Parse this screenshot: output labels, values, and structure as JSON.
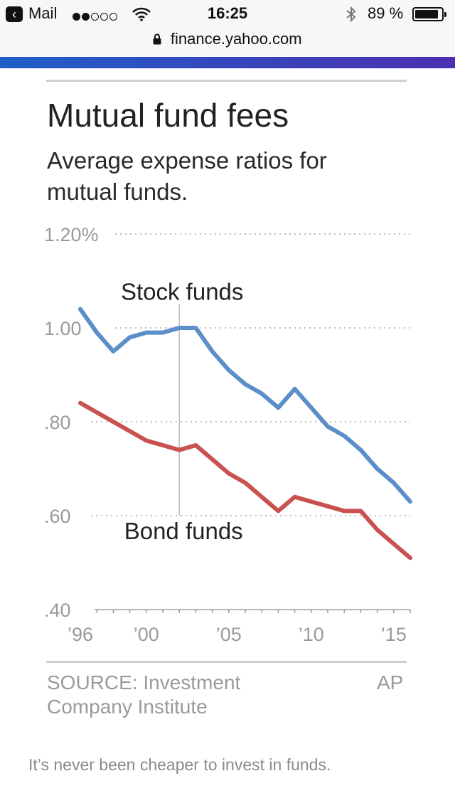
{
  "status_bar": {
    "back_app": "Mail",
    "time": "16:25",
    "battery_percent": "89 %",
    "battery_level": 0.89,
    "signal_bars_filled": 2,
    "signal_bars_total": 5
  },
  "url_bar": {
    "url": "finance.yahoo.com"
  },
  "colors": {
    "brand_start": "#1f5fc7",
    "brand_end": "#4c2fb1",
    "stock_line": "#5b8fc9",
    "bond_line": "#c9514f"
  },
  "article": {
    "title": "Mutual fund fees",
    "subtitle": "Average expense ratios for mutual funds.",
    "source": "SOURCE: Investment Company Institute",
    "credit": "AP",
    "caption": "It’s never been cheaper to invest in funds."
  },
  "chart_data": {
    "type": "line",
    "title": "Mutual fund fees",
    "subtitle": "Average expense ratios for mutual funds.",
    "xlabel": "",
    "ylabel": "",
    "x": [
      1996,
      1997,
      1998,
      1999,
      2000,
      2001,
      2002,
      2003,
      2004,
      2005,
      2006,
      2007,
      2008,
      2009,
      2010,
      2011,
      2012,
      2013,
      2014,
      2015,
      2016
    ],
    "series": [
      {
        "name": "Stock funds",
        "values": [
          1.04,
          0.99,
          0.95,
          0.98,
          0.99,
          0.99,
          1.0,
          1.0,
          0.95,
          0.91,
          0.88,
          0.86,
          0.83,
          0.87,
          0.83,
          0.79,
          0.77,
          0.74,
          0.7,
          0.67,
          0.63
        ]
      },
      {
        "name": "Bond funds",
        "values": [
          0.84,
          0.82,
          0.8,
          0.78,
          0.76,
          0.75,
          0.74,
          0.75,
          0.72,
          0.69,
          0.67,
          0.64,
          0.61,
          0.64,
          0.63,
          0.62,
          0.61,
          0.61,
          0.57,
          0.54,
          0.51
        ]
      }
    ],
    "ylim": [
      0.4,
      1.2
    ],
    "xlim": [
      1996,
      2016
    ],
    "y_ticks": [
      {
        "value": 1.2,
        "label": "1.20%"
      },
      {
        "value": 1.0,
        "label": "1.00"
      },
      {
        "value": 0.8,
        "label": ".80"
      },
      {
        "value": 0.6,
        "label": ".60"
      },
      {
        "value": 0.4,
        "label": ".40"
      }
    ],
    "x_ticks": [
      {
        "value": 1996,
        "label": "’96"
      },
      {
        "value": 2000,
        "label": "’00"
      },
      {
        "value": 2005,
        "label": "’05"
      },
      {
        "value": 2010,
        "label": "’10"
      },
      {
        "value": 2015,
        "label": "’15"
      }
    ],
    "annotations": [
      {
        "text": "Stock funds",
        "series": "Stock funds",
        "x": 2002
      },
      {
        "text": "Bond funds",
        "series": "Bond funds",
        "x": 2002
      }
    ],
    "grid": true,
    "legend": "none"
  }
}
